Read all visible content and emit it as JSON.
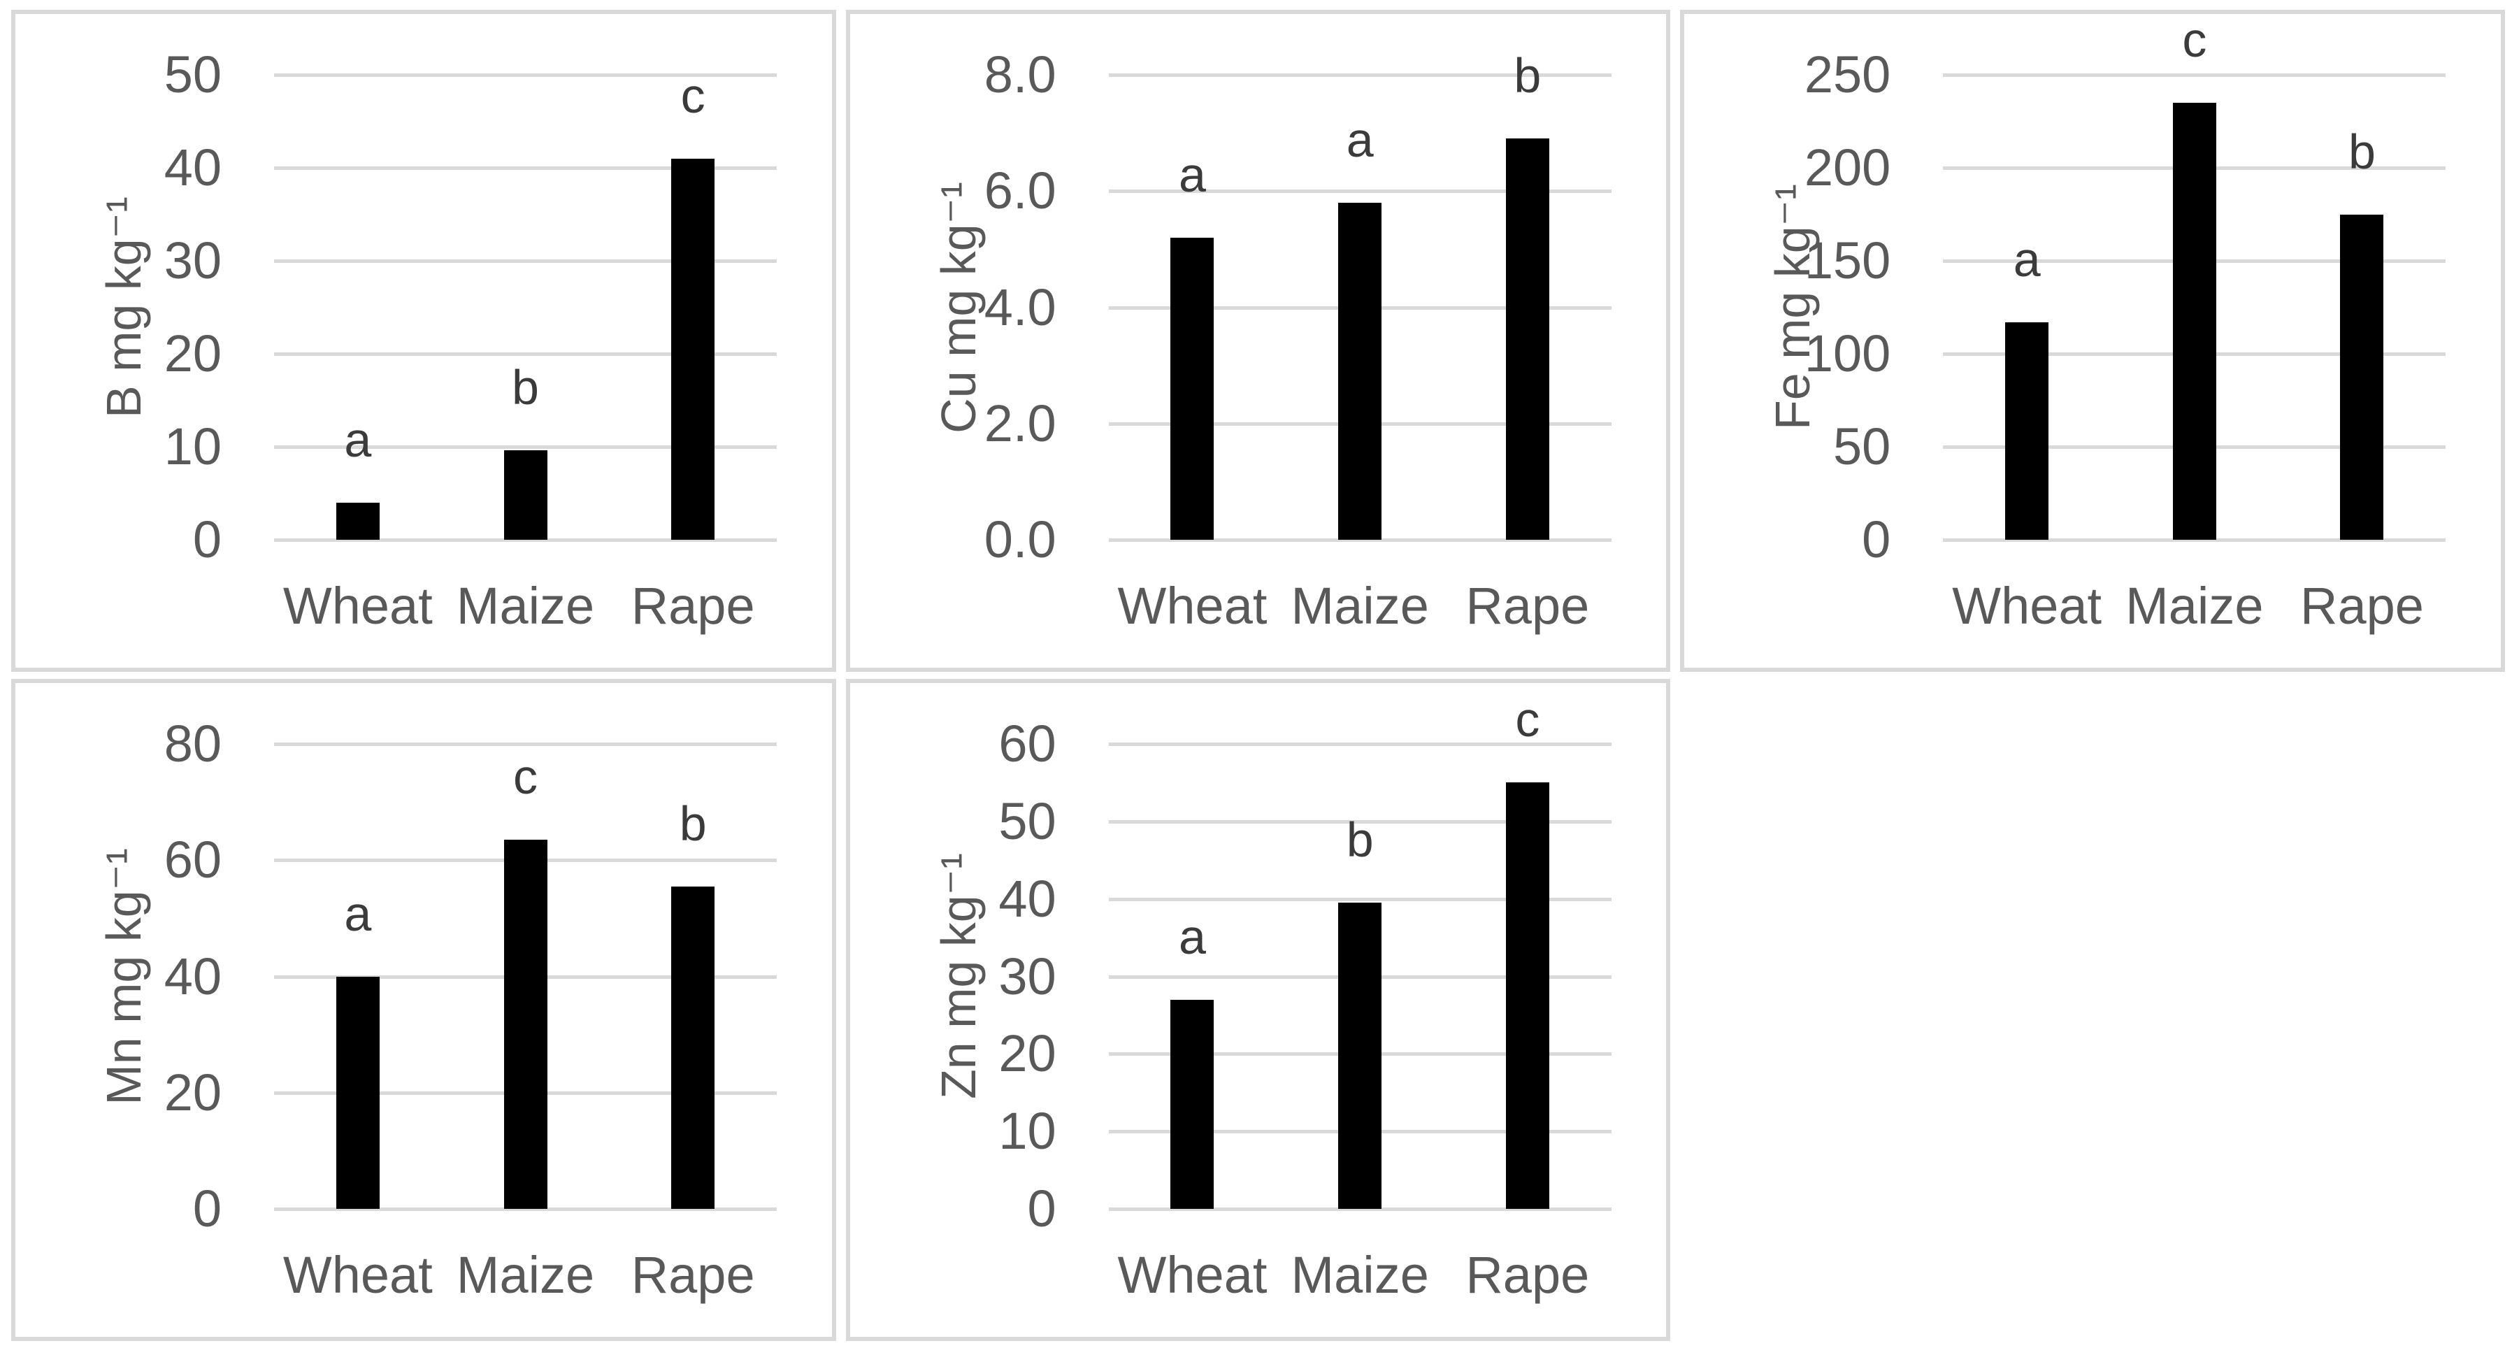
{
  "figure": {
    "background_color": "#ffffff",
    "panel_border_color": "#d9d9d9",
    "gridline_color": "#d9d9d9",
    "bar_color": "#000000",
    "axis_text_color": "#595959",
    "letter_text_color": "#3b3b3b",
    "layout": "2 rows x 3 columns of bordered chart panels; bottom-right cell empty"
  },
  "chart_data": [
    {
      "type": "bar",
      "id": "B",
      "ylabel": "B mg kg⁻¹",
      "categories": [
        "Wheat",
        "Maize",
        "Rape"
      ],
      "values": [
        4,
        9.6,
        41
      ],
      "sig_letters": [
        "a",
        "b",
        "c"
      ],
      "ylim": [
        0,
        50
      ],
      "yticks": [
        "0",
        "10",
        "20",
        "30",
        "40",
        "50"
      ],
      "grid": true,
      "legend": "none",
      "row": 1,
      "col": 1
    },
    {
      "type": "bar",
      "id": "Cu",
      "ylabel": "Cu mg kg⁻¹",
      "categories": [
        "Wheat",
        "Maize",
        "Rape"
      ],
      "values": [
        5.2,
        5.8,
        6.9
      ],
      "sig_letters": [
        "a",
        "a",
        "b"
      ],
      "ylim": [
        0,
        8
      ],
      "yticks": [
        "0.0",
        "2.0",
        "4.0",
        "6.0",
        "8.0"
      ],
      "grid": true,
      "legend": "none",
      "row": 1,
      "col": 2
    },
    {
      "type": "bar",
      "id": "Fe",
      "ylabel": "Fe mg kg⁻¹",
      "categories": [
        "Wheat",
        "Maize",
        "Rape"
      ],
      "values": [
        117,
        235,
        175
      ],
      "sig_letters": [
        "a",
        "c",
        "b"
      ],
      "ylim": [
        0,
        250
      ],
      "yticks": [
        "0",
        "50",
        "100",
        "150",
        "200",
        "250"
      ],
      "grid": true,
      "legend": "none",
      "row": 1,
      "col": 3
    },
    {
      "type": "bar",
      "id": "Mn",
      "ylabel": "Mn mg kg⁻¹",
      "categories": [
        "Wheat",
        "Maize",
        "Rape"
      ],
      "values": [
        40,
        63.5,
        55.5
      ],
      "sig_letters": [
        "a",
        "c",
        "b"
      ],
      "ylim": [
        0,
        80
      ],
      "yticks": [
        "0",
        "20",
        "40",
        "60",
        "80"
      ],
      "grid": true,
      "legend": "none",
      "row": 2,
      "col": 1
    },
    {
      "type": "bar",
      "id": "Zn",
      "ylabel": "Zn mg kg⁻¹",
      "categories": [
        "Wheat",
        "Maize",
        "Rape"
      ],
      "values": [
        27,
        39.5,
        55
      ],
      "sig_letters": [
        "a",
        "b",
        "c"
      ],
      "ylim": [
        0,
        60
      ],
      "yticks": [
        "0",
        "10",
        "20",
        "30",
        "40",
        "50",
        "60"
      ],
      "grid": true,
      "legend": "none",
      "row": 2,
      "col": 2
    }
  ]
}
